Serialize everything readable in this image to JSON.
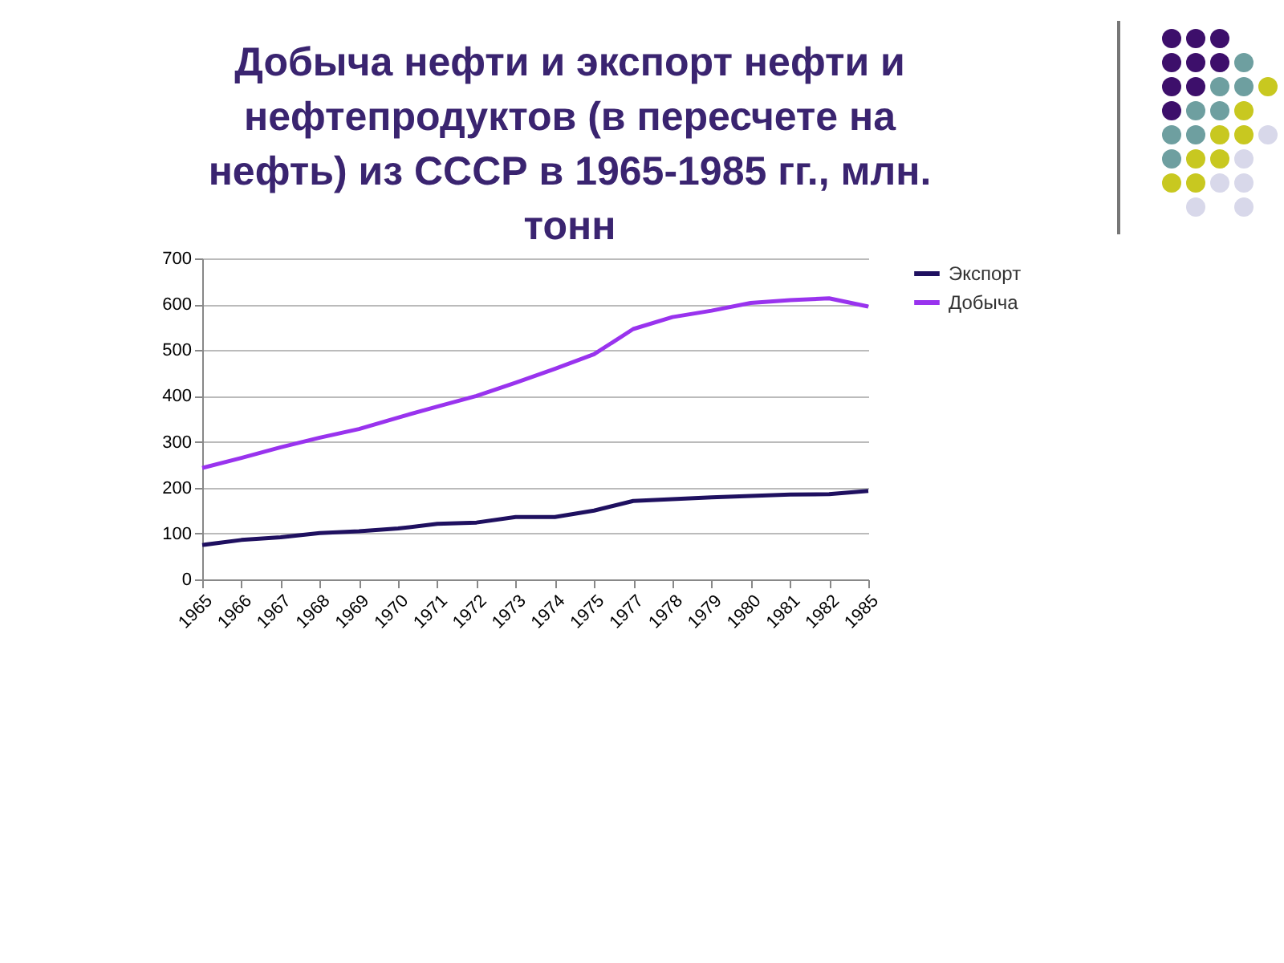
{
  "chart_data": {
    "type": "line",
    "title": "Добыча нефти и экспорт нефти и нефтепродуктов (в пересчете на нефть) из СССР в 1965-1985 гг., млн. тонн",
    "categories": [
      "1965",
      "1966",
      "1967",
      "1968",
      "1969",
      "1970",
      "1971",
      "1972",
      "1973",
      "1974",
      "1975",
      "1977",
      "1978",
      "1979",
      "1980",
      "1981",
      "1982",
      "1985"
    ],
    "series": [
      {
        "name": "Экспорт",
        "color": "#1f1060",
        "values": [
          75,
          86,
          92,
          101,
          105,
          111,
          121,
          124,
          136,
          136,
          150,
          171,
          175,
          179,
          182,
          185,
          186,
          193
        ]
      },
      {
        "name": "Добыча",
        "color": "#9933ee",
        "values": [
          243,
          265,
          288,
          309,
          328,
          353,
          377,
          400,
          429,
          459,
          491,
          546,
          572,
          586,
          603,
          609,
          613,
          595
        ]
      }
    ],
    "ylim": [
      0,
      700
    ],
    "yticks": [
      0,
      100,
      200,
      300,
      400,
      500,
      600,
      700
    ],
    "grid": "y",
    "legend": "right",
    "marker": "none",
    "line_style": "solid"
  }
}
